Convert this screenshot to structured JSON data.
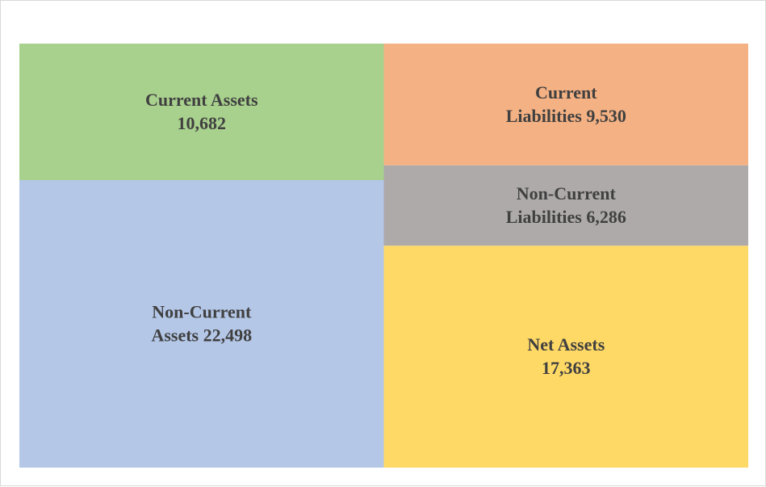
{
  "chart_data": {
    "type": "treemap",
    "title": "",
    "groups": [
      {
        "items": [
          {
            "label_lines": [
              "Current Assets",
              "10,682"
            ],
            "name": "Current Assets",
            "value": 10682,
            "color": "#a9d18e"
          },
          {
            "label_lines": [
              "Non-Current",
              "Assets 22,498"
            ],
            "name": "Non-Current Assets",
            "value": 22498,
            "color": "#b4c7e7"
          }
        ]
      },
      {
        "items": [
          {
            "label_lines": [
              "Current",
              "Liabilities 9,530"
            ],
            "name": "Current Liabilities",
            "value": 9530,
            "color": "#f4b183"
          },
          {
            "label_lines": [
              "Non-Current",
              "Liabilities 6,286"
            ],
            "name": "Non-Current Liabilities",
            "value": 6286,
            "color": "#aeaaaa"
          },
          {
            "label_lines": [
              "Net Assets",
              "17,363"
            ],
            "name": "Net Assets",
            "value": 17363,
            "color": "#ffd966"
          }
        ]
      }
    ]
  }
}
